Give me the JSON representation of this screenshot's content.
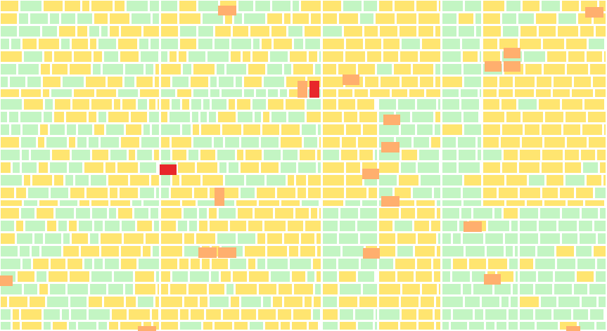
{
  "palette": {
    "green": "#c3f5c3",
    "yellow": "#ffe570",
    "orange": "#ffaf6e",
    "red": "#e8262b",
    "border": "#ffffff"
  },
  "legend_map": {
    "g": "green",
    "y": "yellow",
    "o": "orange",
    "r": "red"
  },
  "summary": {
    "dominant_colors": [
      "green",
      "yellow"
    ],
    "accent_colors": [
      "orange",
      "red"
    ]
  }
}
